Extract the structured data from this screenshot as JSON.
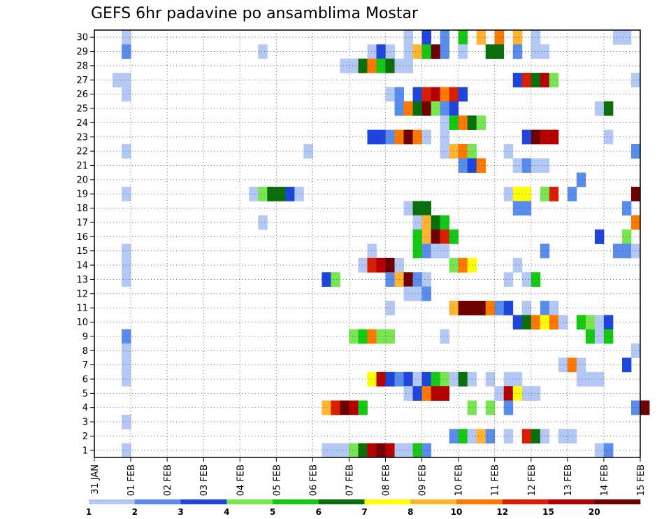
{
  "chart_data": {
    "type": "heatmap",
    "title": "GEFS 6hr padavine po ansamblima Mostar",
    "x_tick_labels": [
      "31 JAN",
      "01 FEB",
      "02 FEB",
      "03 FEB",
      "04 FEB",
      "05 FEB",
      "06 FEB",
      "07 FEB",
      "08 FEB",
      "09 FEB",
      "10 FEB",
      "11 FEB",
      "12 FEB",
      "13 FEB",
      "14 FEB",
      "15 FEB"
    ],
    "y_tick_labels": [
      "1",
      "2",
      "3",
      "4",
      "5",
      "6",
      "7",
      "8",
      "9",
      "10",
      "11",
      "12",
      "13",
      "14",
      "15",
      "16",
      "17",
      "18",
      "19",
      "20",
      "21",
      "22",
      "23",
      "24",
      "25",
      "26",
      "27",
      "28",
      "29",
      "30"
    ],
    "x_range_days": [
      0,
      15
    ],
    "y_range": [
      0,
      30
    ],
    "steps_per_day": 4,
    "grid": true,
    "colorbar": {
      "labels": [
        "1",
        "2",
        "3",
        "4",
        "5",
        "6",
        "7",
        "8",
        "10",
        "12",
        "15",
        "20"
      ],
      "colors": [
        "#b4c8f5",
        "#5a8cec",
        "#1e46dc",
        "#78e650",
        "#14c814",
        "#0a6e0a",
        "#ffff00",
        "#ffb432",
        "#ff7800",
        "#dc1e00",
        "#b40000",
        "#6e0000"
      ]
    },
    "cells": [
      [
        30,
        "0.75:1",
        "8.5:1",
        "9:3",
        "9.5:2",
        "10:5",
        "10.5:8",
        "11:9",
        "11.5:8",
        "12:1",
        "14.25:1",
        "14.5:1"
      ],
      [
        29,
        "0.75:2",
        "4.5:1",
        "7.5:1",
        "7.75:3",
        "8:1",
        "8.5:1",
        "8.75:8",
        "9:5",
        "9.25:12",
        "9.5:2",
        "10:1",
        "10.75:6",
        "11:6",
        "11.5:2",
        "12:1",
        "12.25:1"
      ],
      [
        28,
        "6.75:1",
        "7:1",
        "7.25:6",
        "7.5:9",
        "7.75:5",
        "8:6",
        "8.25:1",
        "8.5:1"
      ],
      [
        27,
        "0.5:1",
        "0.75:1",
        "11.5:3",
        "11.75:10",
        "12:6",
        "12.25:11",
        "12.5:4",
        "14.75:1"
      ],
      [
        26,
        "0.75:1",
        "8:1",
        "8.25:2",
        "8.75:3",
        "9:10",
        "9.25:11",
        "9.5:9",
        "9.75:10",
        "10:3"
      ],
      [
        25,
        "8.25:2",
        "8.5:9",
        "8.75:6",
        "9:12",
        "9.25:4",
        "9.5:2",
        "9.75:3",
        "13.75:1",
        "14:6"
      ],
      [
        24,
        "9.5:1",
        "9.75:5",
        "10:9",
        "10.25:6",
        "10.5:4"
      ],
      [
        23,
        "7.5:3",
        "7.75:3",
        "8:2",
        "8.25:9",
        "8.5:12",
        "8.75:9",
        "9:1",
        "9.5:1",
        "11.75:3",
        "12:12",
        "12.25:11",
        "12.5:11",
        "14:1"
      ],
      [
        22,
        "0.75:1",
        "5.75:1",
        "9.5:1",
        "9.75:8",
        "10:9",
        "10.25:4",
        "11.25:1",
        "14.75:2"
      ],
      [
        21,
        "10:2",
        "10.25:3",
        "10.5:9",
        "11.5:1",
        "11.75:2",
        "12:1",
        "12.25:1"
      ],
      [
        20,
        "13.25:2"
      ],
      [
        19,
        "0.75:1",
        "4.25:1",
        "4.5:4",
        "4.75:6",
        "5:6",
        "5.25:3",
        "5.5:1",
        "11.25:1",
        "11.5:7",
        "11.75:7",
        "12.25:4",
        "12.5:10",
        "13:2",
        "14.75:12"
      ],
      [
        18,
        "8.5:1",
        "8.75:6",
        "9:6",
        "11.5:2",
        "11.75:2",
        "14.5:2"
      ],
      [
        17,
        "4.5:1",
        "8.75:1",
        "9:8",
        "9.25:6",
        "9.5:5",
        "14.75:9"
      ],
      [
        16,
        "8.75:5",
        "9:8",
        "9.25:12",
        "9.5:10",
        "9.75:5",
        "13.75:3",
        "14.5:4"
      ],
      [
        15,
        "0.75:1",
        "7.5:1",
        "8.75:5",
        "9:2",
        "9.25:1",
        "9.5:1",
        "12.25:2",
        "14.25:2",
        "14.5:2",
        "14.75:1"
      ],
      [
        14,
        "0.75:1",
        "7.25:1",
        "7.5:10",
        "7.75:11",
        "8:12",
        "8.25:1",
        "9.75:4",
        "10:9",
        "10.25:7",
        "11.5:1"
      ],
      [
        13,
        "0.75:1",
        "6.25:3",
        "6.5:4",
        "8:2",
        "8.25:8",
        "8.5:12",
        "8.75:2",
        "9:1",
        "11.25:1",
        "11.75:1",
        "12:5"
      ],
      [
        12,
        "8.5:1",
        "8.75:1",
        "9:2"
      ],
      [
        11,
        "8:1",
        "9.75:8",
        "10:12",
        "10.25:12",
        "10.5:12",
        "10.75:9",
        "11:2",
        "11.25:3",
        "11.75:1",
        "12.25:2",
        "12.5:1"
      ],
      [
        10,
        "11.5:3",
        "11.75:6",
        "12:9",
        "12.25:7",
        "12.5:9",
        "12.75:1",
        "13.25:5",
        "13.5:4",
        "13.75:1",
        "14:3"
      ],
      [
        9,
        "0.75:2",
        "7:4",
        "7.25:5",
        "7.5:9",
        "7.75:4",
        "8:4",
        "9.5:1",
        "13.5:5",
        "13.75:1",
        "14:5"
      ],
      [
        8,
        "0.75:1",
        "14.75:1"
      ],
      [
        7,
        "0.75:1",
        "12.75:1",
        "13:9",
        "13.25:1",
        "14.5:3"
      ],
      [
        6,
        "0.75:1",
        "7.5:7",
        "7.75:11",
        "8:3",
        "8.25:2",
        "8.5:3",
        "8.75:1",
        "9:3",
        "9.25:5",
        "9.5:4",
        "9.75:1",
        "10:6",
        "10.25:1",
        "10.75:1",
        "11.25:1",
        "11.5:1",
        "13.25:1",
        "13.5:1",
        "13.75:1"
      ],
      [
        5,
        "8.5:1",
        "8.75:3",
        "9:9",
        "9.25:11",
        "9.5:11",
        "11:1",
        "11.25:11",
        "11.5:7",
        "11.75:1",
        "12:1"
      ],
      [
        4,
        "6.25:8",
        "6.5:10",
        "6.75:12",
        "7:11",
        "7.25:5",
        "10.25:4",
        "10.75:4",
        "11.25:2",
        "14.75:2",
        "15:12"
      ],
      [
        3,
        "0.75:1"
      ],
      [
        2,
        "9.75:2",
        "10:5",
        "10.25:1",
        "10.5:8",
        "10.75:2",
        "11.25:1",
        "11.75:10",
        "12:6",
        "12.25:1",
        "12.75:1",
        "13:1"
      ],
      [
        1,
        "0.75:1",
        "6.25:1",
        "6.5:1",
        "6.75:1",
        "7:4",
        "7.25:6",
        "7.5:11",
        "7.75:12",
        "8:11",
        "8.25:1",
        "8.5:1",
        "8.75:5",
        "9:2",
        "13.75:1",
        "14:2"
      ]
    ]
  }
}
